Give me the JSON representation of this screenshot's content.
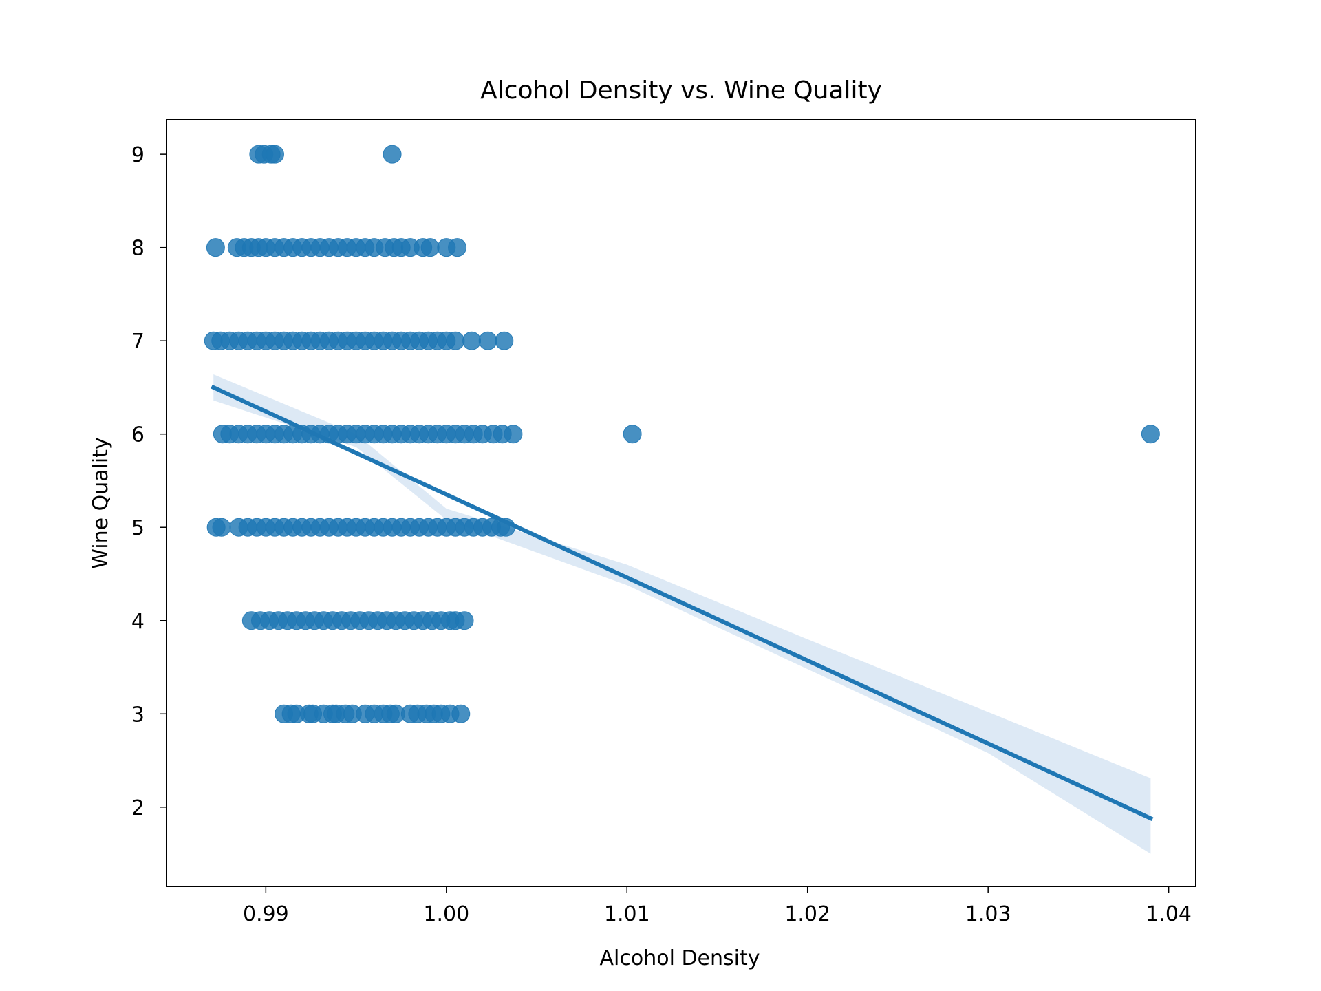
{
  "chart_data": {
    "type": "scatter",
    "title": "Alcohol Density vs. Wine Quality",
    "xlabel": "Alcohol Density",
    "ylabel": "Wine Quality",
    "xlim": [
      0.9845,
      1.0415
    ],
    "ylim": [
      1.15,
      9.37
    ],
    "xticks": [
      0.99,
      1.0,
      1.01,
      1.02,
      1.03,
      1.04
    ],
    "xtick_labels": [
      "0.99",
      "1.00",
      "1.01",
      "1.02",
      "1.03",
      "1.04"
    ],
    "yticks": [
      2,
      3,
      4,
      5,
      6,
      7,
      8,
      9
    ],
    "ytick_labels": [
      "2",
      "3",
      "4",
      "5",
      "6",
      "7",
      "8",
      "9"
    ],
    "grid": false,
    "colors": {
      "points": "#1f77b4",
      "line": "#1f77b4",
      "band": "#c6dbef"
    },
    "series": [
      {
        "kind": "scatter",
        "points": [
          {
            "x": 0.9896,
            "y": 9
          },
          {
            "x": 0.9899,
            "y": 9
          },
          {
            "x": 0.9903,
            "y": 9
          },
          {
            "x": 0.9905,
            "y": 9
          },
          {
            "x": 0.997,
            "y": 9
          },
          {
            "x": 0.98722,
            "y": 8
          },
          {
            "x": 0.9884,
            "y": 8
          },
          {
            "x": 0.9888,
            "y": 8
          },
          {
            "x": 0.9892,
            "y": 8
          },
          {
            "x": 0.9896,
            "y": 8
          },
          {
            "x": 0.99,
            "y": 8
          },
          {
            "x": 0.9905,
            "y": 8
          },
          {
            "x": 0.991,
            "y": 8
          },
          {
            "x": 0.9915,
            "y": 8
          },
          {
            "x": 0.992,
            "y": 8
          },
          {
            "x": 0.9925,
            "y": 8
          },
          {
            "x": 0.993,
            "y": 8
          },
          {
            "x": 0.9935,
            "y": 8
          },
          {
            "x": 0.994,
            "y": 8
          },
          {
            "x": 0.9945,
            "y": 8
          },
          {
            "x": 0.995,
            "y": 8
          },
          {
            "x": 0.9955,
            "y": 8
          },
          {
            "x": 0.996,
            "y": 8
          },
          {
            "x": 0.9966,
            "y": 8
          },
          {
            "x": 0.9971,
            "y": 8
          },
          {
            "x": 0.9975,
            "y": 8
          },
          {
            "x": 0.998,
            "y": 8
          },
          {
            "x": 0.9987,
            "y": 8
          },
          {
            "x": 0.9991,
            "y": 8
          },
          {
            "x": 1.0,
            "y": 8
          },
          {
            "x": 1.0006,
            "y": 8
          },
          {
            "x": 0.9871,
            "y": 7
          },
          {
            "x": 0.9875,
            "y": 7
          },
          {
            "x": 0.988,
            "y": 7
          },
          {
            "x": 0.9885,
            "y": 7
          },
          {
            "x": 0.989,
            "y": 7
          },
          {
            "x": 0.9895,
            "y": 7
          },
          {
            "x": 0.99,
            "y": 7
          },
          {
            "x": 0.9905,
            "y": 7
          },
          {
            "x": 0.991,
            "y": 7
          },
          {
            "x": 0.9915,
            "y": 7
          },
          {
            "x": 0.992,
            "y": 7
          },
          {
            "x": 0.9925,
            "y": 7
          },
          {
            "x": 0.993,
            "y": 7
          },
          {
            "x": 0.9935,
            "y": 7
          },
          {
            "x": 0.994,
            "y": 7
          },
          {
            "x": 0.9945,
            "y": 7
          },
          {
            "x": 0.995,
            "y": 7
          },
          {
            "x": 0.9955,
            "y": 7
          },
          {
            "x": 0.996,
            "y": 7
          },
          {
            "x": 0.9965,
            "y": 7
          },
          {
            "x": 0.997,
            "y": 7
          },
          {
            "x": 0.9975,
            "y": 7
          },
          {
            "x": 0.998,
            "y": 7
          },
          {
            "x": 0.9985,
            "y": 7
          },
          {
            "x": 0.999,
            "y": 7
          },
          {
            "x": 0.9995,
            "y": 7
          },
          {
            "x": 1.0,
            "y": 7
          },
          {
            "x": 1.0005,
            "y": 7
          },
          {
            "x": 1.0014,
            "y": 7
          },
          {
            "x": 1.0023,
            "y": 7
          },
          {
            "x": 1.0032,
            "y": 7
          },
          {
            "x": 0.9876,
            "y": 6
          },
          {
            "x": 0.988,
            "y": 6
          },
          {
            "x": 0.9885,
            "y": 6
          },
          {
            "x": 0.989,
            "y": 6
          },
          {
            "x": 0.9895,
            "y": 6
          },
          {
            "x": 0.99,
            "y": 6
          },
          {
            "x": 0.9905,
            "y": 6
          },
          {
            "x": 0.991,
            "y": 6
          },
          {
            "x": 0.9915,
            "y": 6
          },
          {
            "x": 0.992,
            "y": 6
          },
          {
            "x": 0.9925,
            "y": 6
          },
          {
            "x": 0.993,
            "y": 6
          },
          {
            "x": 0.9935,
            "y": 6
          },
          {
            "x": 0.994,
            "y": 6
          },
          {
            "x": 0.9945,
            "y": 6
          },
          {
            "x": 0.995,
            "y": 6
          },
          {
            "x": 0.9955,
            "y": 6
          },
          {
            "x": 0.996,
            "y": 6
          },
          {
            "x": 0.9965,
            "y": 6
          },
          {
            "x": 0.997,
            "y": 6
          },
          {
            "x": 0.9975,
            "y": 6
          },
          {
            "x": 0.998,
            "y": 6
          },
          {
            "x": 0.9985,
            "y": 6
          },
          {
            "x": 0.999,
            "y": 6
          },
          {
            "x": 0.9995,
            "y": 6
          },
          {
            "x": 1.0,
            "y": 6
          },
          {
            "x": 1.0005,
            "y": 6
          },
          {
            "x": 1.001,
            "y": 6
          },
          {
            "x": 1.0015,
            "y": 6
          },
          {
            "x": 1.002,
            "y": 6
          },
          {
            "x": 1.0026,
            "y": 6
          },
          {
            "x": 1.0031,
            "y": 6
          },
          {
            "x": 1.0037,
            "y": 6
          },
          {
            "x": 1.0103,
            "y": 6
          },
          {
            "x": 1.039,
            "y": 6
          },
          {
            "x": 0.98725,
            "y": 5
          },
          {
            "x": 0.98755,
            "y": 5
          },
          {
            "x": 0.9885,
            "y": 5
          },
          {
            "x": 0.989,
            "y": 5
          },
          {
            "x": 0.9895,
            "y": 5
          },
          {
            "x": 0.99,
            "y": 5
          },
          {
            "x": 0.9905,
            "y": 5
          },
          {
            "x": 0.991,
            "y": 5
          },
          {
            "x": 0.9915,
            "y": 5
          },
          {
            "x": 0.992,
            "y": 5
          },
          {
            "x": 0.9925,
            "y": 5
          },
          {
            "x": 0.993,
            "y": 5
          },
          {
            "x": 0.9935,
            "y": 5
          },
          {
            "x": 0.994,
            "y": 5
          },
          {
            "x": 0.9945,
            "y": 5
          },
          {
            "x": 0.995,
            "y": 5
          },
          {
            "x": 0.9955,
            "y": 5
          },
          {
            "x": 0.996,
            "y": 5
          },
          {
            "x": 0.9965,
            "y": 5
          },
          {
            "x": 0.997,
            "y": 5
          },
          {
            "x": 0.9975,
            "y": 5
          },
          {
            "x": 0.998,
            "y": 5
          },
          {
            "x": 0.9985,
            "y": 5
          },
          {
            "x": 0.999,
            "y": 5
          },
          {
            "x": 0.9995,
            "y": 5
          },
          {
            "x": 1.0,
            "y": 5
          },
          {
            "x": 1.0005,
            "y": 5
          },
          {
            "x": 1.001,
            "y": 5
          },
          {
            "x": 1.0015,
            "y": 5
          },
          {
            "x": 1.002,
            "y": 5
          },
          {
            "x": 1.0025,
            "y": 5
          },
          {
            "x": 1.003,
            "y": 5
          },
          {
            "x": 1.0033,
            "y": 5
          },
          {
            "x": 0.9892,
            "y": 4
          },
          {
            "x": 0.9897,
            "y": 4
          },
          {
            "x": 0.9902,
            "y": 4
          },
          {
            "x": 0.9907,
            "y": 4
          },
          {
            "x": 0.9912,
            "y": 4
          },
          {
            "x": 0.9917,
            "y": 4
          },
          {
            "x": 0.9922,
            "y": 4
          },
          {
            "x": 0.9927,
            "y": 4
          },
          {
            "x": 0.9932,
            "y": 4
          },
          {
            "x": 0.9937,
            "y": 4
          },
          {
            "x": 0.9942,
            "y": 4
          },
          {
            "x": 0.9947,
            "y": 4
          },
          {
            "x": 0.9952,
            "y": 4
          },
          {
            "x": 0.9957,
            "y": 4
          },
          {
            "x": 0.9962,
            "y": 4
          },
          {
            "x": 0.9967,
            "y": 4
          },
          {
            "x": 0.9972,
            "y": 4
          },
          {
            "x": 0.9977,
            "y": 4
          },
          {
            "x": 0.9982,
            "y": 4
          },
          {
            "x": 0.9987,
            "y": 4
          },
          {
            "x": 0.9992,
            "y": 4
          },
          {
            "x": 0.9997,
            "y": 4
          },
          {
            "x": 1.0002,
            "y": 4
          },
          {
            "x": 1.0005,
            "y": 4
          },
          {
            "x": 1.001,
            "y": 4
          },
          {
            "x": 0.991,
            "y": 3
          },
          {
            "x": 0.9914,
            "y": 3
          },
          {
            "x": 0.9917,
            "y": 3
          },
          {
            "x": 0.9924,
            "y": 3
          },
          {
            "x": 0.9926,
            "y": 3
          },
          {
            "x": 0.9932,
            "y": 3
          },
          {
            "x": 0.9937,
            "y": 3
          },
          {
            "x": 0.9939,
            "y": 3
          },
          {
            "x": 0.9944,
            "y": 3
          },
          {
            "x": 0.9948,
            "y": 3
          },
          {
            "x": 0.9955,
            "y": 3
          },
          {
            "x": 0.996,
            "y": 3
          },
          {
            "x": 0.9965,
            "y": 3
          },
          {
            "x": 0.9969,
            "y": 3
          },
          {
            "x": 0.9972,
            "y": 3
          },
          {
            "x": 0.998,
            "y": 3
          },
          {
            "x": 0.9984,
            "y": 3
          },
          {
            "x": 0.9989,
            "y": 3
          },
          {
            "x": 0.9993,
            "y": 3
          },
          {
            "x": 0.9997,
            "y": 3
          },
          {
            "x": 1.0002,
            "y": 3
          },
          {
            "x": 1.0008,
            "y": 3
          }
        ]
      },
      {
        "kind": "regression-line",
        "x": [
          0.9871,
          1.039
        ],
        "y": [
          6.5,
          1.88
        ]
      },
      {
        "kind": "confidence-band",
        "x": [
          0.9871,
          0.995,
          1.0,
          1.01,
          1.02,
          1.03,
          1.039
        ],
        "lower": [
          6.36,
          5.86,
          5.08,
          4.38,
          3.48,
          2.58,
          1.5
        ],
        "upper": [
          6.64,
          6.0,
          5.2,
          4.6,
          3.8,
          3.02,
          2.31
        ]
      }
    ]
  }
}
